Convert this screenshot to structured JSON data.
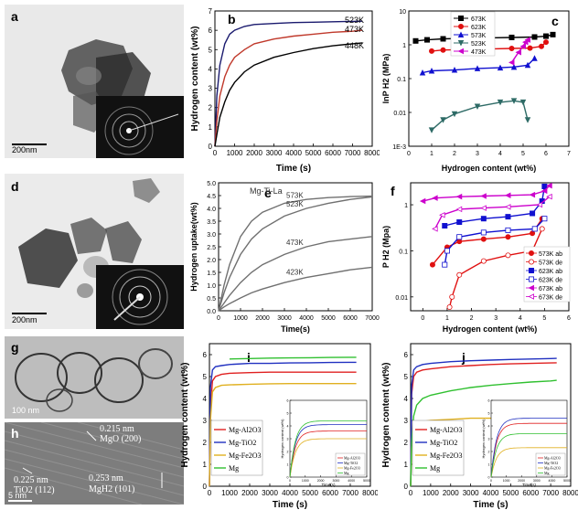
{
  "panels": {
    "a": {
      "letter": "a",
      "scalebar": "200nm"
    },
    "d": {
      "letter": "d",
      "scalebar": "200nm"
    },
    "g": {
      "letter": "g",
      "scalebar": "100 nm"
    },
    "h": {
      "letter": "h",
      "scalebar": "5 nm",
      "annotations": [
        "0.215 nm",
        "MgO (200)",
        "0.225 nm",
        "TiO2 (112)",
        "0.253 nm",
        "MgH2 (101)"
      ]
    }
  },
  "chart_data": [
    {
      "panel": "b",
      "type": "line",
      "xlabel": "Time (s)",
      "ylabel": "Hydrogen content (wt%)",
      "xlim": [
        0,
        8000
      ],
      "ylim": [
        0,
        7
      ],
      "xticks": [
        0,
        1000,
        2000,
        3000,
        4000,
        5000,
        6000,
        7000,
        8000
      ],
      "yticks": [
        0,
        1,
        2,
        3,
        4,
        5,
        6,
        7
      ],
      "series": [
        {
          "name": "523K",
          "color": "#1a1a6e",
          "x": [
            0,
            100,
            250,
            500,
            750,
            1000,
            1500,
            2000,
            3000,
            4000,
            5000,
            6000,
            7000,
            7500
          ],
          "y": [
            0,
            2.6,
            4.2,
            5.3,
            5.8,
            6.0,
            6.2,
            6.3,
            6.35,
            6.4,
            6.42,
            6.44,
            6.46,
            6.47
          ]
        },
        {
          "name": "473K",
          "color": "#c0392b",
          "x": [
            0,
            100,
            250,
            500,
            750,
            1000,
            1500,
            2000,
            3000,
            4000,
            5000,
            6000,
            7000,
            7500
          ],
          "y": [
            0,
            1.3,
            2.6,
            3.6,
            4.2,
            4.6,
            5.0,
            5.3,
            5.55,
            5.7,
            5.8,
            5.9,
            5.95,
            6.0
          ]
        },
        {
          "name": "448K",
          "color": "#000000",
          "x": [
            0,
            100,
            250,
            500,
            750,
            1000,
            1500,
            2000,
            3000,
            4000,
            5000,
            6000,
            7000,
            7500
          ],
          "y": [
            0,
            0.6,
            1.5,
            2.3,
            2.9,
            3.3,
            3.85,
            4.2,
            4.6,
            4.85,
            5.05,
            5.2,
            5.3,
            5.35
          ]
        }
      ]
    },
    {
      "panel": "c",
      "type": "line",
      "xlabel": "Hydrogen content (wt%)",
      "ylabel": "lnP H2 (MPa)",
      "xlim": [
        0,
        7
      ],
      "ylim": [
        0.001,
        10
      ],
      "yscale": "log",
      "xticks": [
        0,
        1,
        2,
        3,
        4,
        5,
        6,
        7
      ],
      "yticks": [
        0.001,
        0.01,
        0.1,
        1,
        10
      ],
      "yticklabels": [
        "1E-3",
        "0.01",
        "0.1",
        "1",
        "10"
      ],
      "legend_position": "top",
      "series": [
        {
          "name": "673K",
          "color": "#000000",
          "marker": "square",
          "x": [
            0.3,
            0.8,
            1.5,
            2.5,
            3.5,
            4.5,
            5.5,
            6.0,
            6.3
          ],
          "y": [
            1.3,
            1.4,
            1.5,
            1.55,
            1.6,
            1.65,
            1.7,
            1.8,
            2.0
          ]
        },
        {
          "name": "623K",
          "color": "#e01010",
          "marker": "circle",
          "x": [
            1.0,
            1.5,
            2.5,
            3.5,
            4.5,
            5.3,
            5.8,
            6.0
          ],
          "y": [
            0.65,
            0.7,
            0.72,
            0.75,
            0.78,
            0.8,
            0.9,
            1.2
          ]
        },
        {
          "name": "573K",
          "color": "#1010d0",
          "marker": "triangle-up",
          "x": [
            0.6,
            1.0,
            2.0,
            3.0,
            4.0,
            4.6,
            5.2,
            5.5
          ],
          "y": [
            0.15,
            0.17,
            0.18,
            0.2,
            0.21,
            0.22,
            0.25,
            0.4
          ]
        },
        {
          "name": "523K",
          "color": "#2e6b66",
          "marker": "triangle-down",
          "x": [
            1.0,
            1.5,
            2.0,
            3.0,
            4.0,
            4.6,
            5.0,
            5.2
          ],
          "y": [
            0.003,
            0.006,
            0.009,
            0.015,
            0.02,
            0.022,
            0.02,
            0.006
          ]
        },
        {
          "name": "473K",
          "color": "#cc00cc",
          "marker": "triangle-left",
          "x": [
            4.5,
            4.8,
            5.0,
            5.1,
            5.2
          ],
          "y": [
            0.3,
            0.6,
            0.9,
            1.2,
            1.4
          ]
        }
      ]
    },
    {
      "panel": "e",
      "type": "line",
      "title": "Mg-Ti-La",
      "xlabel": "Time(s)",
      "ylabel": "Hydrogen uptake(wt%)",
      "xlim": [
        0,
        7000
      ],
      "ylim": [
        0,
        5
      ],
      "xticks": [
        0,
        1000,
        2000,
        3000,
        4000,
        5000,
        6000,
        7000
      ],
      "yticks": [
        0,
        0.5,
        1,
        1.5,
        2,
        2.5,
        3,
        3.5,
        4,
        4.5,
        5
      ],
      "yticklabels": [
        "0.0",
        "0.5",
        "1.0",
        "1.5",
        "2.0",
        "2.5",
        "3.0",
        "3.5",
        "4.0",
        "4.5",
        "5.0"
      ],
      "series": [
        {
          "name": "573K",
          "color": "#707070",
          "x": [
            0,
            250,
            500,
            1000,
            1500,
            2000,
            3000,
            4000,
            5000,
            6000,
            7000
          ],
          "y": [
            0,
            1.0,
            1.8,
            2.9,
            3.5,
            3.85,
            4.2,
            4.35,
            4.42,
            4.46,
            4.48
          ]
        },
        {
          "name": "523K",
          "color": "#707070",
          "x": [
            0,
            250,
            500,
            1000,
            1500,
            2000,
            3000,
            4000,
            5000,
            6000,
            7000
          ],
          "y": [
            0,
            0.7,
            1.3,
            2.2,
            2.8,
            3.2,
            3.7,
            4.0,
            4.2,
            4.35,
            4.45
          ]
        },
        {
          "name": "473K",
          "color": "#707070",
          "x": [
            0,
            250,
            500,
            1000,
            1500,
            2000,
            3000,
            4000,
            5000,
            6000,
            7000
          ],
          "y": [
            0,
            0.3,
            0.6,
            1.1,
            1.5,
            1.8,
            2.2,
            2.5,
            2.7,
            2.8,
            2.9
          ]
        },
        {
          "name": "423K",
          "color": "#707070",
          "x": [
            0,
            250,
            500,
            1000,
            1500,
            2000,
            3000,
            4000,
            5000,
            6000,
            7000
          ],
          "y": [
            0,
            0.15,
            0.28,
            0.5,
            0.7,
            0.85,
            1.1,
            1.3,
            1.45,
            1.6,
            1.7
          ]
        }
      ]
    },
    {
      "panel": "f",
      "type": "line",
      "xlabel": "Hydrogen content (wt%)",
      "ylabel": "P H2 (Mpa)",
      "xlim": [
        -0.5,
        6
      ],
      "ylim": [
        0.005,
        3
      ],
      "yscale": "log",
      "xticks": [
        0,
        1,
        2,
        3,
        4,
        5,
        6
      ],
      "yticks": [
        0.01,
        0.1,
        1
      ],
      "yticklabels": [
        "0.01",
        "0.1",
        "1"
      ],
      "legend_position": "bottom-right",
      "series": [
        {
          "name": "573K ab",
          "color": "#e01010",
          "marker": "circle",
          "filled": true,
          "x": [
            0.4,
            1.0,
            1.5,
            2.5,
            3.5,
            4.5,
            4.9
          ],
          "y": [
            0.05,
            0.12,
            0.16,
            0.18,
            0.2,
            0.24,
            0.5
          ]
        },
        {
          "name": "573K de",
          "color": "#e01010",
          "marker": "circle",
          "filled": false,
          "x": [
            4.9,
            4.5,
            3.5,
            2.5,
            1.5,
            1.2,
            1.1
          ],
          "y": [
            0.3,
            0.1,
            0.08,
            0.06,
            0.03,
            0.01,
            0.006
          ]
        },
        {
          "name": "623K ab",
          "color": "#1010d0",
          "marker": "square",
          "filled": true,
          "x": [
            0.9,
            1.5,
            2.5,
            3.5,
            4.5,
            4.9,
            5.0
          ],
          "y": [
            0.35,
            0.42,
            0.5,
            0.55,
            0.65,
            1.2,
            2.5
          ]
        },
        {
          "name": "623K de",
          "color": "#1010d0",
          "marker": "square",
          "filled": false,
          "x": [
            5.0,
            4.6,
            3.5,
            2.5,
            1.5,
            1.0,
            0.9
          ],
          "y": [
            0.5,
            0.3,
            0.28,
            0.25,
            0.2,
            0.1,
            0.05
          ]
        },
        {
          "name": "673K ab",
          "color": "#cc00cc",
          "marker": "triangle-left",
          "filled": true,
          "x": [
            0.0,
            0.5,
            1.5,
            2.5,
            3.5,
            4.5,
            5.0,
            5.2
          ],
          "y": [
            1.2,
            1.4,
            1.5,
            1.55,
            1.6,
            1.65,
            2.0,
            2.6
          ]
        },
        {
          "name": "673K de",
          "color": "#cc00cc",
          "marker": "triangle-left",
          "filled": false,
          "x": [
            5.2,
            4.8,
            3.5,
            2.5,
            1.5,
            0.8,
            0.5
          ],
          "y": [
            1.5,
            1.0,
            0.9,
            0.85,
            0.8,
            0.6,
            0.3
          ]
        }
      ]
    },
    {
      "panel": "i",
      "type": "line",
      "xlabel": "Time (s)",
      "ylabel": "Hydrogen content (wt%)",
      "xlim": [
        0,
        8000
      ],
      "ylim": [
        0,
        6.5
      ],
      "xticks": [
        0,
        1000,
        2000,
        3000,
        4000,
        5000,
        6000,
        7000,
        8000
      ],
      "yticks": [
        0,
        1,
        2,
        3,
        4,
        5,
        6
      ],
      "legend_position": "bottom-left",
      "series": [
        {
          "name": "Mg-Al2O3",
          "color": "#e02020",
          "x": [
            0,
            50,
            150,
            300,
            600,
            1000,
            2000,
            3000,
            4000,
            5000,
            6000,
            7000,
            7300
          ],
          "y": [
            0,
            3.5,
            4.8,
            5.0,
            5.1,
            5.15,
            5.18,
            5.2,
            5.2,
            5.2,
            5.2,
            5.2,
            5.2
          ]
        },
        {
          "name": "Mg-TiO2",
          "color": "#2030c0",
          "x": [
            0,
            50,
            150,
            300,
            600,
            1000,
            2000,
            3000,
            4000,
            5000,
            6000,
            7000,
            7300
          ],
          "y": [
            0,
            4.5,
            5.3,
            5.45,
            5.5,
            5.55,
            5.6,
            5.6,
            5.62,
            5.63,
            5.64,
            5.65,
            5.65
          ]
        },
        {
          "name": "Mg-Fe2O3",
          "color": "#e0b020",
          "x": [
            0,
            50,
            150,
            300,
            600,
            1000,
            2000,
            3000,
            4000,
            5000,
            6000,
            7000,
            7300
          ],
          "y": [
            0,
            3.0,
            4.3,
            4.5,
            4.6,
            4.62,
            4.65,
            4.67,
            4.68,
            4.68,
            4.68,
            4.68,
            4.68
          ]
        },
        {
          "name": "Mg",
          "color": "#30c030",
          "x": [
            1000,
            2000,
            3000,
            4000,
            5000,
            6000,
            7000,
            7300
          ],
          "y": [
            5.8,
            5.82,
            5.84,
            5.85,
            5.86,
            5.87,
            5.88,
            5.88
          ]
        }
      ],
      "inset": {
        "xlabel": "Time(s)",
        "ylabel": "Hydrogen content (wt%)",
        "xticks": [
          0,
          1000,
          2000,
          3000,
          4000,
          5000
        ],
        "yticks": [
          0,
          1,
          2,
          3,
          4,
          5,
          6
        ],
        "legend": [
          "Mg-Al2O3",
          "Mg-TiO2",
          "Mg-Fe2O3",
          "Mg"
        ],
        "colors": [
          "#e02020",
          "#2030c0",
          "#e0b020",
          "#30c030"
        ],
        "plateau": [
          3.6,
          4.1,
          3.0,
          4.4
        ]
      }
    },
    {
      "panel": "j",
      "type": "line",
      "xlabel": "Time (s)",
      "ylabel": "Hydrogen content (wt%)",
      "xlim": [
        0,
        8000
      ],
      "ylim": [
        0,
        6.5
      ],
      "xticks": [
        0,
        1000,
        2000,
        3000,
        4000,
        5000,
        6000,
        7000,
        8000
      ],
      "yticks": [
        0,
        1,
        2,
        3,
        4,
        5,
        6
      ],
      "legend_position": "bottom-left",
      "series": [
        {
          "name": "Mg-Al2O3",
          "color": "#e02020",
          "x": [
            0,
            50,
            150,
            300,
            600,
            1000,
            2000,
            3000,
            4000,
            5000,
            6000,
            7000,
            7300
          ],
          "y": [
            0,
            4.2,
            5.0,
            5.2,
            5.3,
            5.35,
            5.45,
            5.5,
            5.55,
            5.58,
            5.6,
            5.62,
            5.63
          ]
        },
        {
          "name": "Mg-TiO2",
          "color": "#2030c0",
          "x": [
            0,
            50,
            150,
            300,
            600,
            1000,
            2000,
            3000,
            4000,
            5000,
            6000,
            7000,
            7300
          ],
          "y": [
            0,
            4.6,
            5.3,
            5.45,
            5.55,
            5.6,
            5.68,
            5.72,
            5.75,
            5.78,
            5.8,
            5.82,
            5.83
          ]
        },
        {
          "name": "Mg-Fe2O3",
          "color": "#e0b020",
          "x": [
            0,
            50,
            150,
            300,
            600,
            1000,
            2000,
            3000,
            4000,
            5000,
            6000,
            7000,
            7300
          ],
          "y": [
            0,
            1.8,
            2.5,
            2.8,
            2.95,
            3.0,
            3.05,
            3.1,
            3.1,
            3.12,
            3.13,
            3.14,
            3.15
          ]
        },
        {
          "name": "Mg",
          "color": "#30c030",
          "x": [
            0,
            50,
            150,
            300,
            600,
            1000,
            2000,
            3000,
            4000,
            5000,
            6000,
            7000,
            7300
          ],
          "y": [
            0,
            2.0,
            3.2,
            3.7,
            4.0,
            4.15,
            4.35,
            4.5,
            4.6,
            4.68,
            4.75,
            4.8,
            4.83
          ]
        }
      ],
      "inset": {
        "xlabel": "Time(s)",
        "ylabel": "Hydrogen content (wt%)",
        "xticks": [
          0,
          1000,
          2000,
          3000,
          4000,
          5000
        ],
        "yticks": [
          0,
          1,
          2,
          3,
          4,
          5,
          6
        ],
        "legend": [
          "Mg-Al2O3",
          "Mg-TiO2",
          "Mg-Fe2O3",
          "Mg"
        ],
        "colors": [
          "#e02020",
          "#2030c0",
          "#e0b020",
          "#30c030"
        ],
        "plateau": [
          4.2,
          4.6,
          2.3,
          3.4
        ]
      }
    }
  ]
}
